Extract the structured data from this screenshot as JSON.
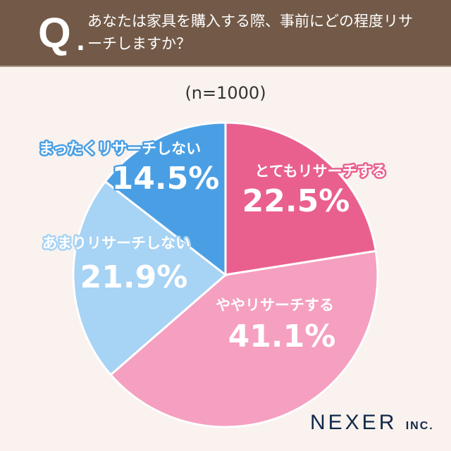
{
  "header": {
    "q": "Q",
    "dot": ".",
    "title": "あなたは家具を購入する際、事前にどの程度リサーチしますか？"
  },
  "sample": "(n=1000)",
  "logo": {
    "name": "NEXER",
    "suffix": "INC."
  },
  "chart_data": {
    "type": "pie",
    "title": "あなたは家具を購入する際、事前にどの程度リサーチしますか？",
    "subtitle": "(n=1000)",
    "slices": [
      {
        "label": "とてもリサーチする",
        "value": 22.5,
        "display": "22.5%",
        "color": "#e9608f"
      },
      {
        "label": "ややリサーチする",
        "value": 41.1,
        "display": "41.1%",
        "color": "#f5a0c0"
      },
      {
        "label": "あまりリサーチしない",
        "value": 21.9,
        "display": "21.9%",
        "color": "#a7d3f4"
      },
      {
        "label": "まったくリサーチしない",
        "value": 14.5,
        "display": "14.5%",
        "color": "#4a9fe4"
      }
    ],
    "start": "top",
    "direction": "clockwise"
  }
}
